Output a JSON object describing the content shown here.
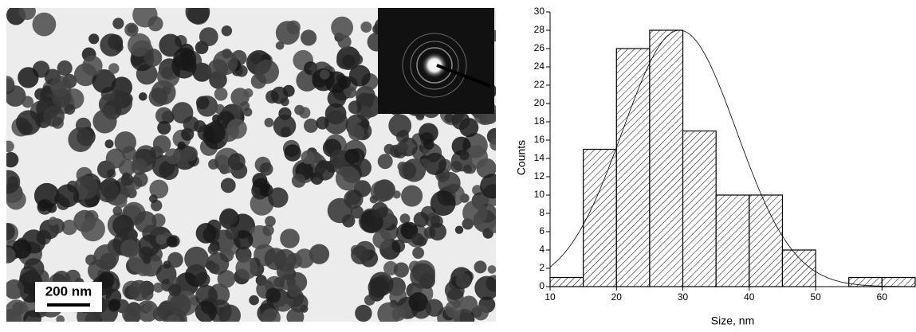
{
  "image": {
    "scale_bar": "200 nm"
  },
  "chart_data": {
    "type": "histogram",
    "x_label": "Size, nm",
    "y_label": "Counts",
    "bins": [
      10,
      15,
      20,
      25,
      30,
      35,
      40,
      45,
      50,
      55,
      60,
      65
    ],
    "values": [
      1,
      15,
      26,
      28,
      17,
      10,
      10,
      4,
      0,
      1,
      1
    ],
    "color": "#000000",
    "fit": {
      "amplitude": 28,
      "center": 29.5,
      "sigma": 8.6
    },
    "xlim": [
      10,
      65
    ],
    "xticks": [
      10,
      20,
      30,
      40,
      50,
      60
    ],
    "ylim": [
      0,
      30
    ],
    "yticks": [
      0,
      2,
      4,
      6,
      8,
      10,
      12,
      14,
      16,
      18,
      20,
      22,
      24,
      26,
      28,
      30
    ]
  }
}
